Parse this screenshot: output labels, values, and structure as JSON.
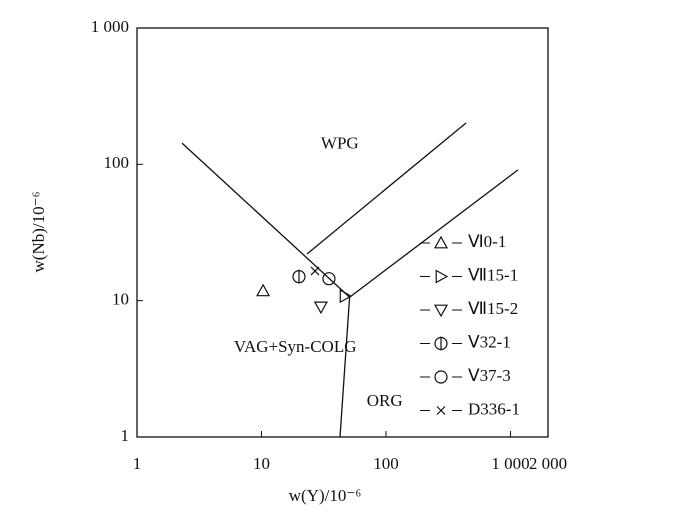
{
  "chart_data": {
    "type": "scatter",
    "x_label": "w(Y)/10⁻⁶",
    "y_label": "w(Nb)/10⁻⁶",
    "log_x": true,
    "log_y": true,
    "xlim": [
      1,
      2000
    ],
    "ylim": [
      1,
      1000
    ],
    "xticks": [
      1,
      10,
      100,
      {
        "value": 1000,
        "label": "1 000"
      },
      {
        "value": 2000,
        "label": "2 000"
      }
    ],
    "yticks": [
      1,
      10,
      100,
      {
        "value": 1000,
        "label": "1 000"
      }
    ],
    "field_labels": [
      {
        "text": "WPG",
        "x": 30,
        "y": 140
      },
      {
        "text": "VAG+Syn-COLG",
        "x": 6,
        "y": 4.5
      },
      {
        "text": "ORG",
        "x": 70,
        "y": 1.8
      }
    ],
    "boundaries": [
      {
        "x": [
          2.3,
          51
        ],
        "y": [
          143,
          10.6
        ]
      },
      {
        "x": [
          51,
          42.7
        ],
        "y": [
          10.6,
          1
        ]
      },
      {
        "x": [
          51,
          1148
        ],
        "y": [
          10.6,
          91
        ]
      },
      {
        "x": [
          23.2,
          439
        ],
        "y": [
          22,
          201
        ]
      }
    ],
    "series": [
      {
        "name": "Ⅵ0-1",
        "marker": "triangle-up",
        "color": "#111",
        "x": [
          10.3
        ],
        "y": [
          11.8
        ]
      },
      {
        "name": "Ⅶ15-1",
        "marker": "triangle-right",
        "color": "#111",
        "x": [
          46.9
        ],
        "y": [
          10.8
        ]
      },
      {
        "name": "Ⅶ15-2",
        "marker": "triangle-down",
        "color": "#111",
        "x": [
          30
        ],
        "y": [
          9
        ]
      },
      {
        "name": "Ⅴ32-1",
        "marker": "circle-bar",
        "color": "#111",
        "x": [
          20
        ],
        "y": [
          15
        ]
      },
      {
        "name": "Ⅴ37-3",
        "marker": "circle",
        "color": "#111",
        "x": [
          34.8
        ],
        "y": [
          14.5
        ]
      },
      {
        "name": "D336-1",
        "marker": "x",
        "color": "#111",
        "x": [
          26.9
        ],
        "y": [
          16.5
        ]
      }
    ]
  }
}
